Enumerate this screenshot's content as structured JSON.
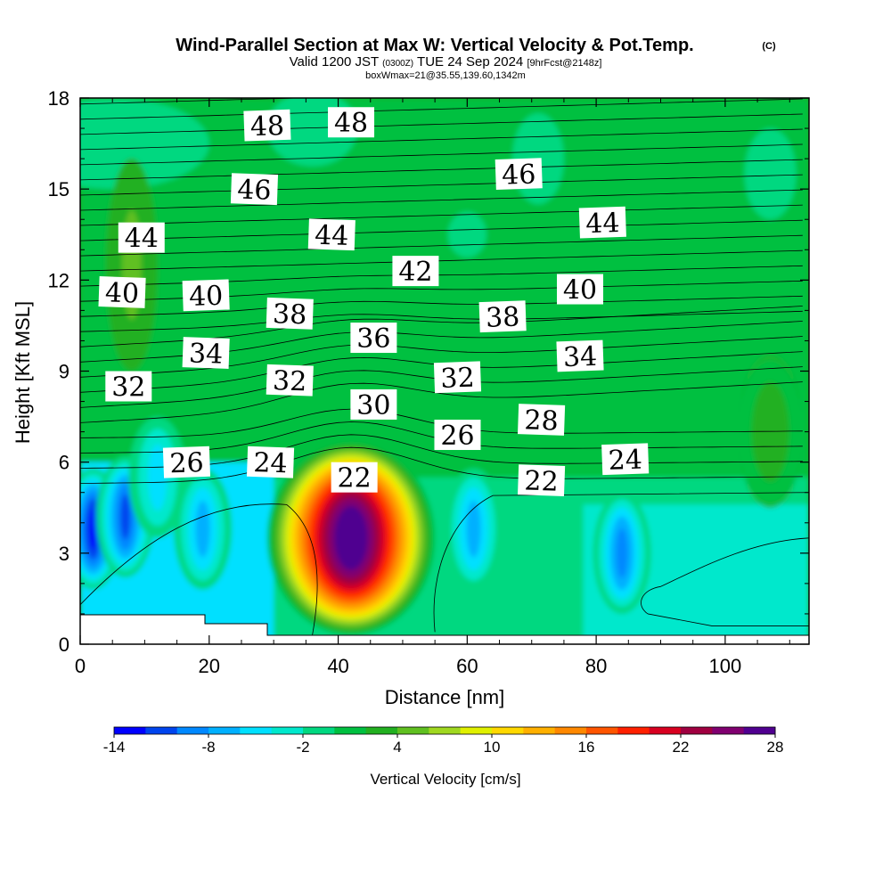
{
  "header": {
    "title": "Wind-Parallel Section at Max W: Vertical Velocity & Pot.Temp.",
    "title_unit": "(C)",
    "valid_prefix": "Valid 1200 JST",
    "valid_utc": "(0300Z)",
    "valid_date": "TUE 24 Sep 2024",
    "forecast": "[9hrFcst@2148z]",
    "box_info": "boxWmax=21@35.55,139.60,1342m"
  },
  "chart_data": {
    "type": "heatmap",
    "xlabel": "Distance [nm]",
    "ylabel": "Height [Kft MSL]",
    "xlim": [
      0,
      113
    ],
    "ylim": [
      0,
      18
    ],
    "x_ticks": [
      "0",
      "20",
      "40",
      "60",
      "80",
      "100"
    ],
    "y_ticks": [
      "0",
      "3",
      "6",
      "9",
      "12",
      "15",
      "18"
    ],
    "colorbar": {
      "label": "Vertical Velocity [cm/s]",
      "ticks": [
        "-14",
        "-8",
        "-2",
        "4",
        "10",
        "16",
        "22",
        "28"
      ],
      "min": -14,
      "max": 28,
      "step": 2,
      "colors": [
        "#0000ff",
        "#0044ee",
        "#0088ff",
        "#00b0ff",
        "#00e0ff",
        "#00e8cc",
        "#00d880",
        "#00c040",
        "#22b020",
        "#60c020",
        "#a0d820",
        "#e0f000",
        "#ffd800",
        "#ffb000",
        "#ff8800",
        "#ff5500",
        "#ff2000",
        "#d80020",
        "#a00040",
        "#800070",
        "#500090"
      ]
    },
    "vertical_velocity_features": [
      {
        "x": 2,
        "y": 3.8,
        "w": -14
      },
      {
        "x": 7,
        "y": 4.2,
        "w": -12
      },
      {
        "x": 12,
        "y": 5.5,
        "w": -6
      },
      {
        "x": 19,
        "y": 3.8,
        "w": -8
      },
      {
        "x": 42,
        "y": 3.5,
        "w": 28
      },
      {
        "x": 61,
        "y": 3.8,
        "w": -8
      },
      {
        "x": 84,
        "y": 3.0,
        "w": -10
      },
      {
        "x": 107,
        "y": 7.0,
        "w": 2
      }
    ],
    "theta_labels": [
      {
        "text": "48",
        "x": 29,
        "y": 17.1
      },
      {
        "text": "48",
        "x": 42,
        "y": 17.2
      },
      {
        "text": "46",
        "x": 27,
        "y": 15.0
      },
      {
        "text": "46",
        "x": 68,
        "y": 15.5
      },
      {
        "text": "44",
        "x": 9.5,
        "y": 13.4
      },
      {
        "text": "44",
        "x": 39,
        "y": 13.5
      },
      {
        "text": "44",
        "x": 81,
        "y": 13.9
      },
      {
        "text": "42",
        "x": 52,
        "y": 12.3
      },
      {
        "text": "40",
        "x": 6.5,
        "y": 11.6
      },
      {
        "text": "40",
        "x": 19.5,
        "y": 11.5
      },
      {
        "text": "40",
        "x": 77.5,
        "y": 11.7
      },
      {
        "text": "38",
        "x": 32.5,
        "y": 10.9
      },
      {
        "text": "38",
        "x": 65.5,
        "y": 10.8
      },
      {
        "text": "36",
        "x": 45.5,
        "y": 10.1
      },
      {
        "text": "34",
        "x": 19.5,
        "y": 9.6
      },
      {
        "text": "34",
        "x": 77.5,
        "y": 9.5
      },
      {
        "text": "32",
        "x": 7.5,
        "y": 8.5
      },
      {
        "text": "32",
        "x": 32.5,
        "y": 8.7
      },
      {
        "text": "32",
        "x": 58.5,
        "y": 8.8
      },
      {
        "text": "30",
        "x": 45.5,
        "y": 7.9
      },
      {
        "text": "28",
        "x": 71.5,
        "y": 7.4
      },
      {
        "text": "26",
        "x": 16.5,
        "y": 6.0
      },
      {
        "text": "26",
        "x": 58.5,
        "y": 6.9
      },
      {
        "text": "24",
        "x": 29.5,
        "y": 6.0
      },
      {
        "text": "24",
        "x": 84.5,
        "y": 6.1
      },
      {
        "text": "22",
        "x": 42.5,
        "y": 5.5
      },
      {
        "text": "22",
        "x": 71.5,
        "y": 5.4
      }
    ]
  }
}
